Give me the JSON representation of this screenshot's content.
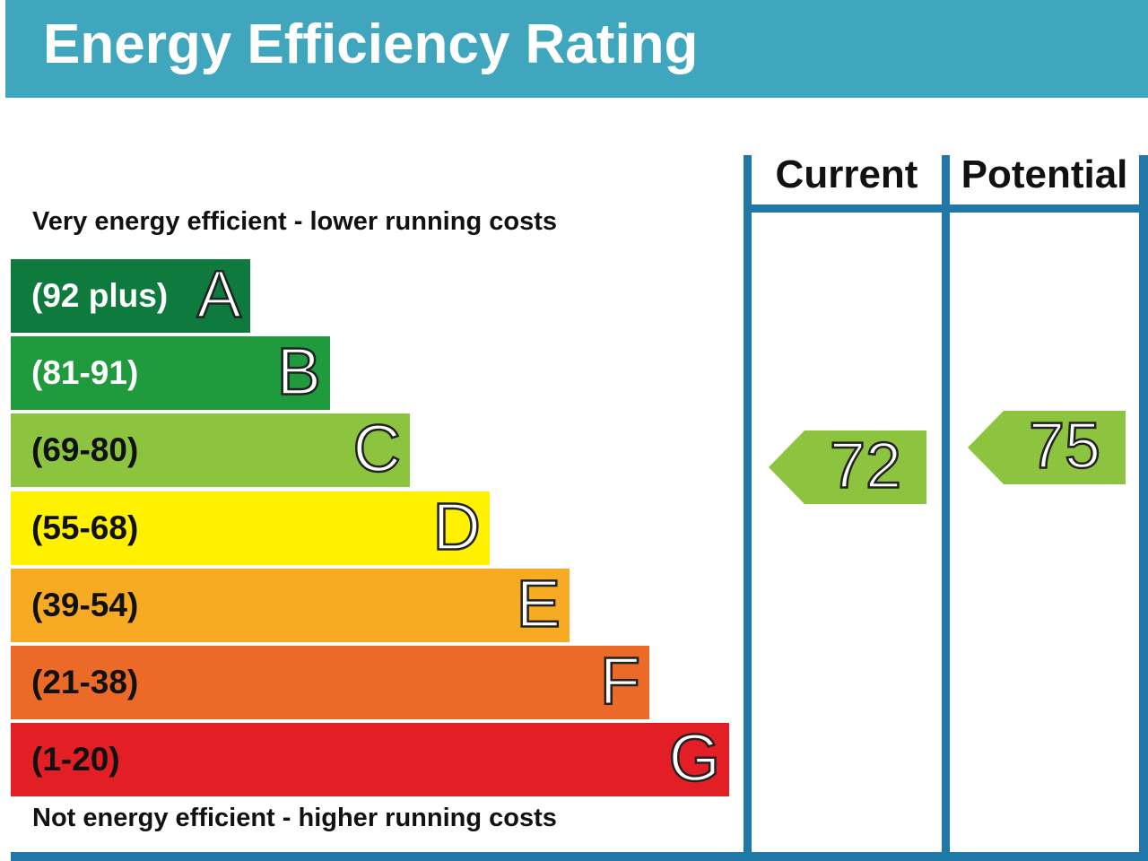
{
  "header": {
    "title": "Energy Efficiency Rating"
  },
  "notes": {
    "top": "Very energy efficient - lower running costs",
    "bottom": "Not energy efficient - higher running costs"
  },
  "columns": {
    "current": "Current",
    "potential": "Potential"
  },
  "chart_data": {
    "type": "bar",
    "title": "Energy Efficiency Rating",
    "bands": [
      {
        "letter": "A",
        "range": "(92 plus)",
        "min": 92,
        "max": 100,
        "color": "#0e7a3d",
        "text_color": "#ffffff"
      },
      {
        "letter": "B",
        "range": "(81-91)",
        "min": 81,
        "max": 91,
        "color": "#1f9a3c",
        "text_color": "#ffffff"
      },
      {
        "letter": "C",
        "range": "(69-80)",
        "min": 69,
        "max": 80,
        "color": "#8dc43f",
        "text_color": "#111111"
      },
      {
        "letter": "D",
        "range": "(55-68)",
        "min": 55,
        "max": 68,
        "color": "#fff100",
        "text_color": "#111111"
      },
      {
        "letter": "E",
        "range": "(39-54)",
        "min": 39,
        "max": 54,
        "color": "#f6ab22",
        "text_color": "#111111"
      },
      {
        "letter": "F",
        "range": "(21-38)",
        "min": 21,
        "max": 38,
        "color": "#ec6a27",
        "text_color": "#111111"
      },
      {
        "letter": "G",
        "range": "(1-20)",
        "min": 1,
        "max": 20,
        "color": "#e31e25",
        "text_color": "#111111"
      }
    ],
    "current": {
      "value": 72,
      "band": "C",
      "color": "#8dc43f"
    },
    "potential": {
      "value": 75,
      "band": "C",
      "color": "#8dc43f"
    }
  }
}
